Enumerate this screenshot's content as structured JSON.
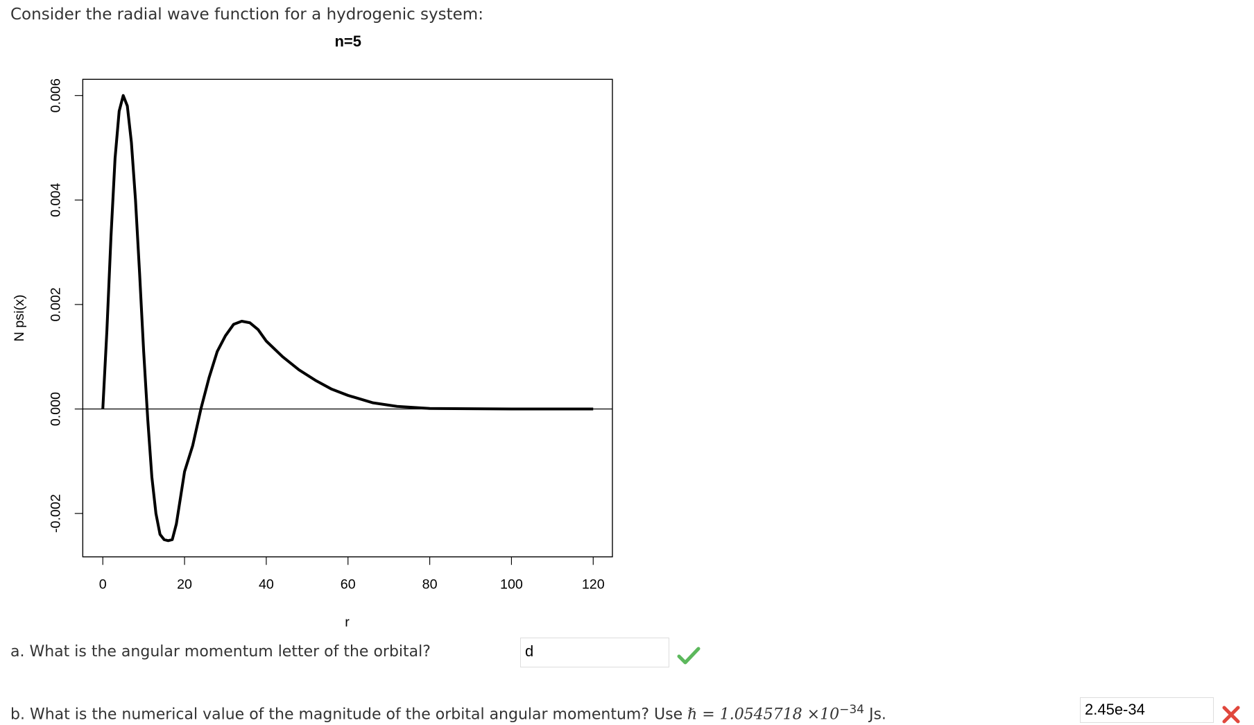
{
  "intro": "Consider the radial wave function for a hydrogenic system:",
  "chart_data": {
    "type": "line",
    "title": "n=5",
    "xlabel": "r",
    "ylabel": "N psi(x)",
    "x": [
      0,
      1,
      2,
      3,
      4,
      5,
      6,
      7,
      8,
      9,
      10,
      11,
      12,
      13,
      14,
      15,
      16,
      17,
      18,
      19,
      20,
      22,
      24,
      26,
      28,
      30,
      32,
      34,
      36,
      38,
      40,
      44,
      48,
      52,
      56,
      60,
      66,
      72,
      80,
      100,
      120
    ],
    "series": [
      {
        "color": "#000000",
        "values": [
          0,
          0.0015,
          0.0033,
          0.0048,
          0.0057,
          0.006,
          0.0058,
          0.0051,
          0.004,
          0.0026,
          0.0011,
          -0.0002,
          -0.0013,
          -0.002,
          -0.0024,
          -0.0025,
          -0.00252,
          -0.0025,
          -0.0022,
          -0.0017,
          -0.0012,
          -0.0007,
          0,
          0.0006,
          0.0011,
          0.0014,
          0.00162,
          0.00168,
          0.00165,
          0.00152,
          0.0013,
          0.001,
          0.00075,
          0.00055,
          0.00038,
          0.00026,
          0.00012,
          5e-05,
          1e-05,
          0,
          0
        ]
      }
    ],
    "reference_line": 0,
    "xlim": [
      -4.9,
      124.7
    ],
    "ylim": [
      -0.00283,
      0.00631
    ],
    "xticks": [
      0,
      20,
      40,
      60,
      80,
      100,
      120
    ],
    "yticks": [
      -0.002,
      {
        "value": 0,
        "label": "0.000"
      },
      0.002,
      0.004,
      0.006
    ]
  },
  "questions": [
    {
      "prompt": "a. What is the angular momentum letter of the orbital?",
      "answer": "d"
    },
    {
      "prompt": "b. What is the numerical value of the magnitude of the orbital angular momentum? Use",
      "constant": "ℏ = 1.0545718 ×10",
      "exponent": "−34",
      "unit": "Js.",
      "answer": "2.45e-34"
    }
  ]
}
